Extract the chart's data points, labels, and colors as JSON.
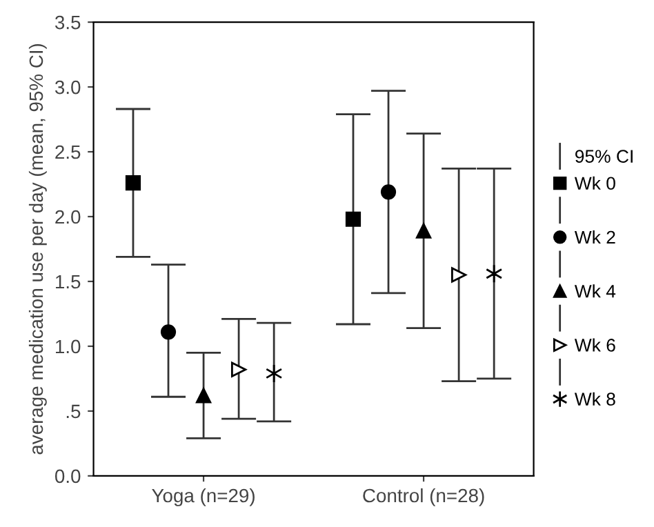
{
  "chart_data": {
    "type": "scatter",
    "ylabel": "average medication use per day (mean, 95% CI)",
    "categories": [
      "Yoga (n=29)",
      "Control (n=28)"
    ],
    "legend_title": "95% CI",
    "series": [
      {
        "name": "Wk 0",
        "color": "#000000",
        "marker": "square",
        "values": [
          2.26,
          1.98
        ],
        "errors": [
          [
            1.69,
            2.83
          ],
          [
            1.17,
            2.79
          ]
        ]
      },
      {
        "name": "Wk 2",
        "color": "#000000",
        "marker": "circle",
        "values": [
          1.11,
          2.19
        ],
        "errors": [
          [
            0.61,
            1.63
          ],
          [
            1.41,
            2.97
          ]
        ]
      },
      {
        "name": "Wk 4",
        "color": "#000000",
        "marker": "triangle",
        "values": [
          0.62,
          1.89
        ],
        "errors": [
          [
            0.29,
            0.95
          ],
          [
            1.14,
            2.64
          ]
        ]
      },
      {
        "name": "Wk 6",
        "color": "#000000",
        "marker": "triangle-right-open",
        "values": [
          0.82,
          1.55
        ],
        "errors": [
          [
            0.44,
            1.21
          ],
          [
            0.73,
            2.37
          ]
        ]
      },
      {
        "name": "Wk 8",
        "color": "#000000",
        "marker": "cross",
        "values": [
          0.79,
          1.56
        ],
        "errors": [
          [
            0.42,
            1.18
          ],
          [
            0.75,
            2.37
          ]
        ]
      }
    ],
    "ylim": [
      0,
      3.5
    ],
    "yticks": [
      {
        "value": 0,
        "label": "0.0"
      },
      {
        "value": 0.5,
        "label": ".5"
      },
      {
        "value": 1,
        "label": "1.0"
      },
      {
        "value": 1.5,
        "label": "1.5"
      },
      {
        "value": 2,
        "label": "2.0"
      },
      {
        "value": 2.5,
        "label": "2.5"
      },
      {
        "value": 3,
        "label": "3.0"
      },
      {
        "value": 3.5,
        "label": "3.5"
      }
    ],
    "grid": false,
    "legend": "right"
  }
}
